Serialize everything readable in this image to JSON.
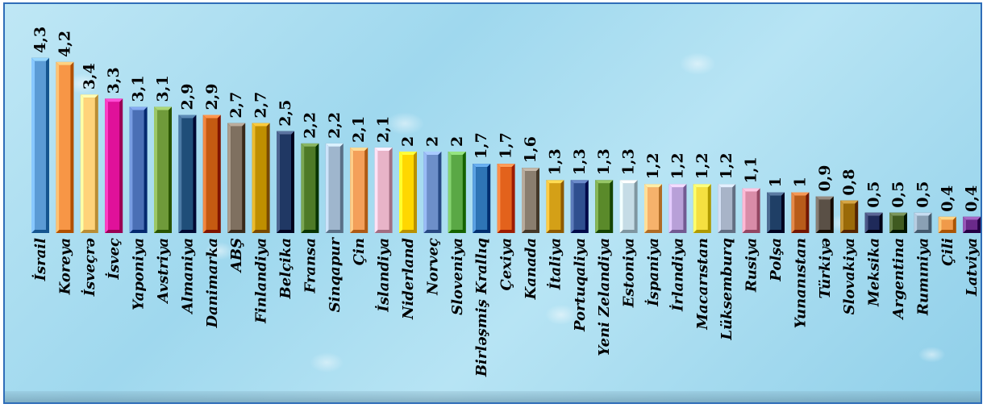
{
  "chart_data": {
    "type": "bar",
    "categories": [
      "İsrail",
      "Koreya",
      "İsveçrə",
      "İsveç",
      "Yaponiya",
      "Avstriya",
      "Almaniya",
      "Danimarka",
      "ABŞ",
      "Finlandiya",
      "Belçika",
      "Fransa",
      "Sinqapur",
      "Çin",
      "İslandiya",
      "Niderland",
      "Norveç",
      "Sloveniya",
      "Birləşmiş Krallıq",
      "Çexiya",
      "Kanada",
      "İtaliya",
      "Portuqaliya",
      "Yeni Zelandiya",
      "Estoniya",
      "İspaniya",
      "İrlandiya",
      "Macarıstan",
      "Lüksemburq",
      "Rusiya",
      "Polşa",
      "Yunanıstan",
      "Türkiyə",
      "Slovakiya",
      "Meksika",
      "Argentina",
      "Rumıniya",
      "Çili",
      "Latviya"
    ],
    "values": [
      4.3,
      4.2,
      3.4,
      3.3,
      3.1,
      3.1,
      2.9,
      2.9,
      2.7,
      2.7,
      2.5,
      2.2,
      2.2,
      2.1,
      2.1,
      2,
      2,
      2,
      1.7,
      1.7,
      1.6,
      1.3,
      1.3,
      1.3,
      1.3,
      1.2,
      1.2,
      1.2,
      1.2,
      1.1,
      1,
      1,
      0.9,
      0.8,
      0.5,
      0.5,
      0.5,
      0.4,
      0.4
    ],
    "value_labels": [
      "4,3",
      "4,2",
      "3,4",
      "3,3",
      "3,1",
      "3,1",
      "2,9",
      "2,9",
      "2,7",
      "2,7",
      "2,5",
      "2,2",
      "2,2",
      "2,1",
      "2,1",
      "2",
      "2",
      "2",
      "1,7",
      "1,7",
      "1,6",
      "1,3",
      "1,3",
      "1,3",
      "1,3",
      "1,2",
      "1,2",
      "1,2",
      "1,2",
      "1,1",
      "1",
      "1",
      "0,9",
      "0,8",
      "0,5",
      "0,5",
      "0,5",
      "0,4",
      "0,4"
    ],
    "colors": [
      "#5b9bd5",
      "#f79646",
      "#ffd37a",
      "#e0119a",
      "#4a6fb5",
      "#6f9a3a",
      "#1f4e79",
      "#c55a11",
      "#7f7060",
      "#bf8f00",
      "#203864",
      "#4e7a27",
      "#9fb6cd",
      "#f4a05a",
      "#e8b4c8",
      "#ffd700",
      "#6d8fc9",
      "#5aa845",
      "#2e75b6",
      "#e3621c",
      "#8a7e6f",
      "#d4a017",
      "#2f4f8f",
      "#5a8a2a",
      "#c5dce6",
      "#f6b26b",
      "#b8a0d8",
      "#f5e040",
      "#a8b4c8",
      "#d98ca8",
      "#1f3f66",
      "#b85c1a",
      "#5a5046",
      "#9a6a08",
      "#1f2a5a",
      "#3f5a20",
      "#8aa0b4",
      "#f09a4a",
      "#6a2a8a"
    ],
    "ylim": [
      0,
      4.6
    ]
  }
}
